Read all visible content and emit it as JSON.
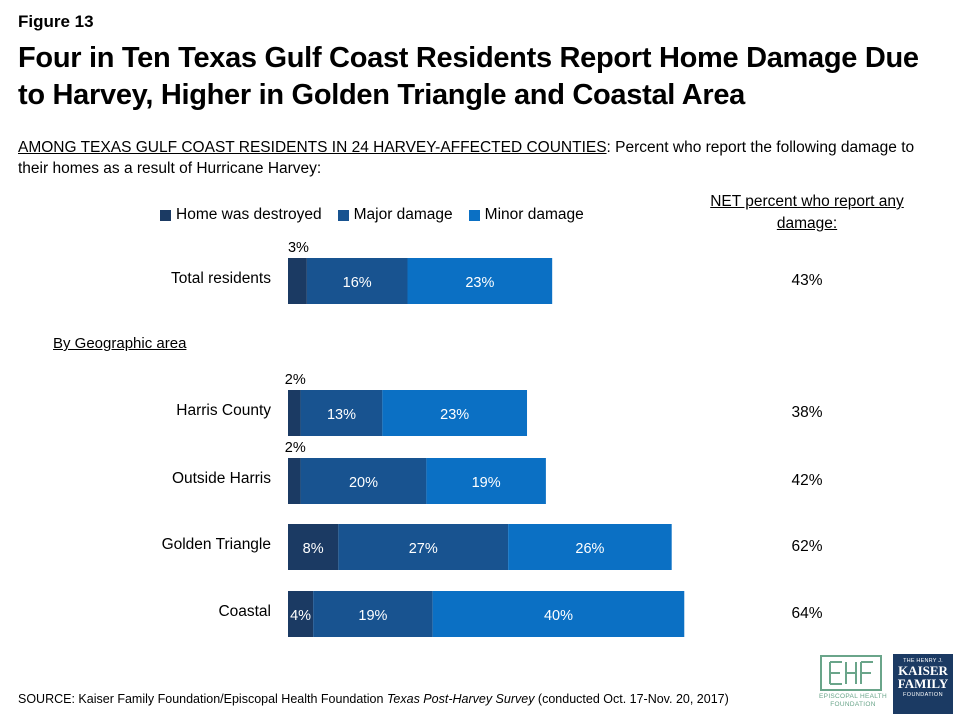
{
  "figure_label": "Figure 13",
  "title": "Four in Ten Texas Gulf Coast Residents Report Home Damage Due to Harvey, Higher in Golden Triangle and Coastal Area",
  "subtitle_prefix": "AMONG TEXAS GULF COAST RESIDENTS IN 24 HARVEY-AFFECTED COUNTIES",
  "subtitle_rest": ": Percent who report the following damage to their homes as a result of Hurricane Harvey:",
  "net_header": "NET percent who report any damage:",
  "section_label": "By Geographic area",
  "colors": {
    "destroyed": "#1b3a63",
    "major": "#185390",
    "minor": "#0b70c4"
  },
  "chart_data": {
    "type": "bar",
    "orientation": "horizontal",
    "stacked": true,
    "categories": [
      "Total residents",
      "Harris County",
      "Outside Harris",
      "Golden Triangle",
      "Coastal"
    ],
    "series": [
      {
        "name": "Home was destroyed",
        "values": [
          3,
          2,
          2,
          8,
          4
        ]
      },
      {
        "name": "Major damage",
        "values": [
          16,
          13,
          20,
          27,
          19
        ]
      },
      {
        "name": "Minor damage",
        "values": [
          23,
          23,
          19,
          26,
          40
        ]
      }
    ],
    "net": [
      "43%",
      "38%",
      "42%",
      "62%",
      "64%"
    ],
    "xlim": [
      0,
      100
    ]
  },
  "source_prefix": "SOURCE: Kaiser Family Foundation/Episcopal Health Foundation ",
  "source_italic": "Texas Post-Harvey Survey",
  "source_suffix": " (conducted Oct. 17-Nov. 20, 2017)",
  "logos": {
    "ehf_mark": "EHF",
    "ehf_text": "EPISCOPAL HEALTH FOUNDATION",
    "kff_small": "THE HENRY J.",
    "kff_big1": "KAISER",
    "kff_big2": "FAMILY",
    "kff_found": "FOUNDATION"
  }
}
